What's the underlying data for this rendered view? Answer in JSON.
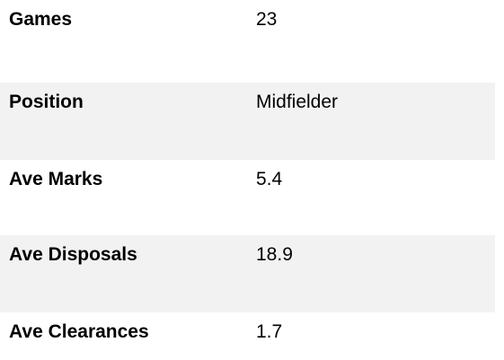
{
  "table": {
    "rows": [
      [
        "Games",
        "23"
      ],
      [
        "Position",
        "Midfielder"
      ],
      [
        "Ave Marks",
        "5.4"
      ],
      [
        "Ave Disposals",
        "18.9"
      ],
      [
        "Ave Clearances",
        "1.7"
      ]
    ]
  }
}
